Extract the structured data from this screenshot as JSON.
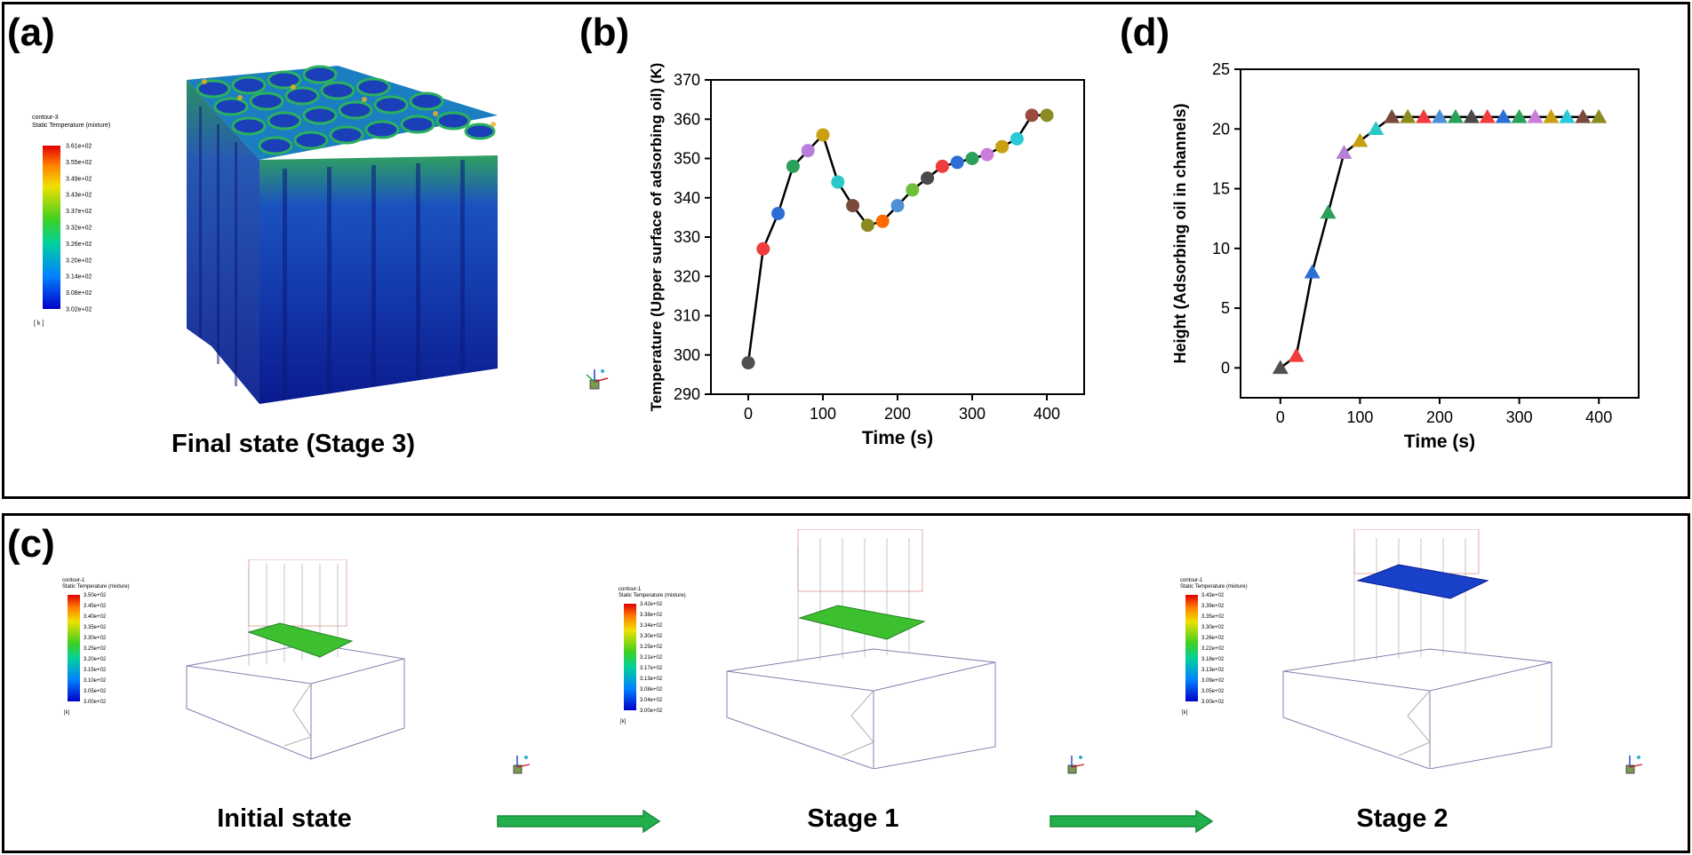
{
  "panel_labels": {
    "a": "(a)",
    "b": "(b)",
    "c": "(c)",
    "d": "(d)"
  },
  "captions": {
    "final": "Final state (Stage 3)",
    "initial": "Initial state",
    "stage1": "Stage 1",
    "stage2": "Stage 2"
  },
  "legend_a": {
    "title1": "contour-3",
    "title2": "Static Temperature (mixture)",
    "unit": "[ k ]",
    "ticks": [
      "3.61e+02",
      "3.55e+02",
      "3.49e+02",
      "3.43e+02",
      "3.37e+02",
      "3.32e+02",
      "3.26e+02",
      "3.20e+02",
      "3.14e+02",
      "3.08e+02",
      "3.02e+02"
    ]
  },
  "legend_c1": {
    "title1": "contour-1",
    "title2": "Static Temperature (mixture)",
    "unit": "[k]",
    "ticks": [
      "3.50e+02",
      "3.45e+02",
      "3.40e+02",
      "3.35e+02",
      "3.30e+02",
      "3.25e+02",
      "3.20e+02",
      "3.15e+02",
      "3.10e+02",
      "3.05e+02",
      "3.00e+02"
    ]
  },
  "legend_c2": {
    "title1": "contour-1",
    "title2": "Static Temperature (mixture)",
    "unit": "[k]",
    "ticks": [
      "3.42e+02",
      "3.38e+02",
      "3.34e+02",
      "3.30e+02",
      "3.25e+02",
      "3.21e+02",
      "3.17e+02",
      "3.13e+02",
      "3.08e+02",
      "3.04e+02",
      "3.00e+02"
    ]
  },
  "legend_c3": {
    "title1": "contour-1",
    "title2": "Static Temperature (mixture)",
    "unit": "[k]",
    "ticks": [
      "3.43e+02",
      "3.39e+02",
      "3.35e+02",
      "3.30e+02",
      "3.26e+02",
      "3.22e+02",
      "3.18e+02",
      "3.13e+02",
      "3.09e+02",
      "3.05e+02",
      "3.00e+02"
    ]
  },
  "colors": {
    "arrow": "#21b04b",
    "arrow_stroke": "#178a38"
  },
  "chart_data": [
    {
      "type": "scatter",
      "xlabel": "Time (s)",
      "ylabel": "Temperature (Upper surface of adsorbing oil) (K)",
      "xlim": [
        -50,
        450
      ],
      "ylim": [
        290,
        370
      ],
      "xticks": [
        0,
        100,
        200,
        300,
        400
      ],
      "yticks": [
        290,
        300,
        310,
        320,
        330,
        340,
        350,
        360,
        370
      ],
      "marker": "circle",
      "x": [
        0,
        20,
        40,
        60,
        80,
        100,
        120,
        140,
        160,
        180,
        200,
        220,
        240,
        260,
        280,
        300,
        320,
        340,
        360,
        380,
        400
      ],
      "y": [
        298,
        327,
        336,
        348,
        352,
        356,
        344,
        338,
        333,
        334,
        338,
        342,
        345,
        348,
        349,
        350,
        351,
        353,
        355,
        361,
        361
      ],
      "point_colors": [
        "#505050",
        "#f03c3c",
        "#2b6fd6",
        "#2aa15a",
        "#b67ed9",
        "#c8a012",
        "#2ac8c8",
        "#7a4a3c",
        "#8b8b22",
        "#ff6a00",
        "#4f8fd6",
        "#6fbf3a",
        "#4a4a4a",
        "#f03c3c",
        "#2b6fd6",
        "#2aa15a",
        "#c87ed9",
        "#c8a012",
        "#2ac8d8",
        "#9a4a40",
        "#8b8b22"
      ]
    },
    {
      "type": "scatter",
      "xlabel": "Time (s)",
      "ylabel": "Height (Adsorbing oil in channels)",
      "xlim": [
        -50,
        450
      ],
      "ylim": [
        -2.5,
        25
      ],
      "xticks": [
        0,
        100,
        200,
        300,
        400
      ],
      "yticks": [
        0,
        5,
        10,
        15,
        20,
        25
      ],
      "marker": "triangle",
      "x": [
        0,
        20,
        40,
        60,
        80,
        100,
        120,
        140,
        160,
        180,
        200,
        220,
        240,
        260,
        280,
        300,
        320,
        340,
        360,
        380,
        400
      ],
      "y": [
        0,
        1,
        8,
        13,
        18,
        19,
        20,
        21,
        21,
        21,
        21,
        21,
        21,
        21,
        21,
        21,
        21,
        21,
        21,
        21,
        21
      ],
      "point_colors": [
        "#505050",
        "#f03c3c",
        "#2b6fd6",
        "#2aa15a",
        "#b67ed9",
        "#c8a012",
        "#2ac8c8",
        "#7a4a3c",
        "#8b8b22",
        "#f03c3c",
        "#4f8fd6",
        "#2aa15a",
        "#4a4a4a",
        "#f03c3c",
        "#2b6fd6",
        "#2aa15a",
        "#c87ed9",
        "#c8a012",
        "#2ac8d8",
        "#7a4a3c",
        "#8b8b22"
      ]
    }
  ]
}
